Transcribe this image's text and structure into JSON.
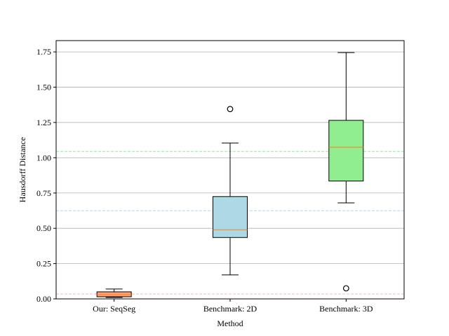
{
  "chart_data": {
    "type": "box",
    "title": "",
    "xlabel": "Method",
    "ylabel": "Hausdorff Distance",
    "ylim": [
      0,
      1.83
    ],
    "grid": {
      "y": true,
      "x": false,
      "color": "#b0b0b0"
    },
    "yticks": [
      0.0,
      0.25,
      0.5,
      0.75,
      1.0,
      1.25,
      1.5,
      1.75
    ],
    "ytick_labels": [
      "0.00",
      "0.25",
      "0.50",
      "0.75",
      "1.00",
      "1.25",
      "1.50",
      "1.75"
    ],
    "categories": [
      "Our: SeqSeg",
      "Benchmark: 2D",
      "Benchmark: 3D"
    ],
    "boxes": [
      {
        "category": "Our: SeqSeg",
        "whisker_low": 0.01,
        "q1": 0.015,
        "median": 0.03,
        "q3": 0.05,
        "whisker_high": 0.07,
        "outliers": [],
        "color": "#ffa07a"
      },
      {
        "category": "Benchmark: 2D",
        "whisker_low": 0.17,
        "q1": 0.435,
        "median": 0.49,
        "q3": 0.725,
        "whisker_high": 1.105,
        "outliers": [
          1.345
        ],
        "color": "#add8e6"
      },
      {
        "category": "Benchmark: 3D",
        "whisker_low": 0.68,
        "q1": 0.835,
        "median": 1.075,
        "q3": 1.265,
        "whisker_high": 1.745,
        "outliers": [
          0.075
        ],
        "color": "#90ee90"
      }
    ],
    "reference_lines": [
      {
        "value": 0.035,
        "color": "#ffb6c1",
        "style": "dashed"
      },
      {
        "value": 0.625,
        "color": "#add8e6",
        "style": "dashed"
      },
      {
        "value": 1.045,
        "color": "#90ee90",
        "style": "dashed"
      }
    ],
    "median_color": "#ff7f0e"
  }
}
